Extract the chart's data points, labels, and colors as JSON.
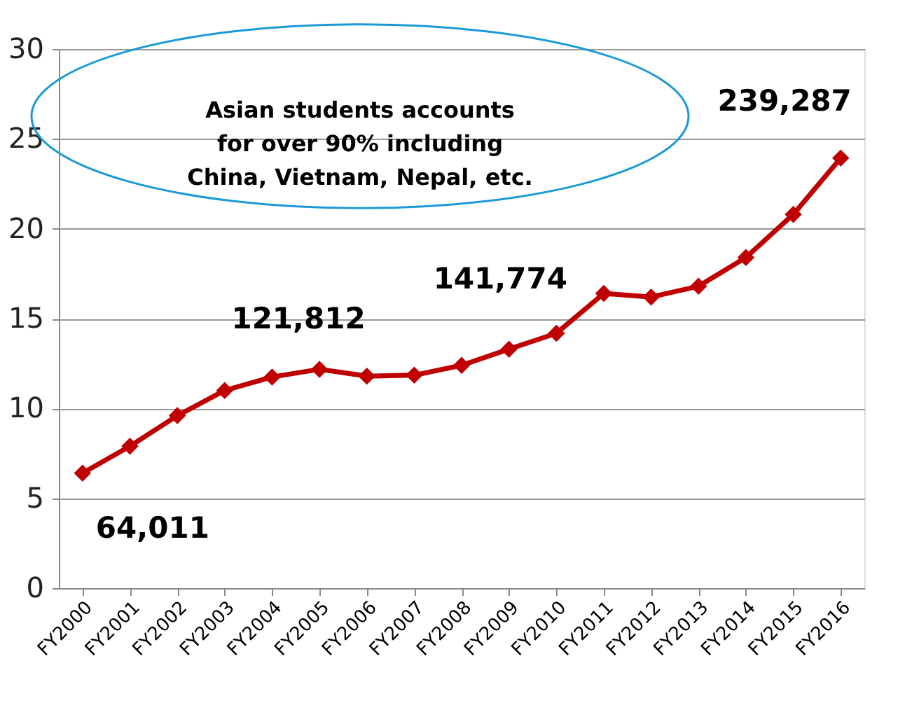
{
  "chart_data": {
    "type": "line",
    "categories": [
      "FY2000",
      "FY2001",
      "FY2002",
      "FY2003",
      "FY2004",
      "FY2005",
      "FY2006",
      "FY2007",
      "FY2008",
      "FY2009",
      "FY2010",
      "FY2011",
      "FY2012",
      "FY2013",
      "FY2014",
      "FY2015",
      "FY2016"
    ],
    "series": [
      {
        "color": "#c00000",
        "values": [
          6.4,
          7.9,
          9.6,
          11.0,
          11.75,
          12.18,
          11.8,
          11.85,
          12.4,
          13.3,
          14.18,
          16.4,
          16.2,
          16.8,
          18.4,
          20.8,
          23.93
        ]
      }
    ],
    "ylim": [
      0,
      30
    ],
    "yticks": [
      0,
      5,
      10,
      15,
      20,
      25,
      30
    ],
    "grid": "y",
    "marker": "diamond",
    "line_style": "solid",
    "annotations": [
      {
        "text": "64,011",
        "x": "FY2000",
        "y": 6.4
      },
      {
        "text": "121,812",
        "x": "FY2005",
        "y": 12.18
      },
      {
        "text": "141,774",
        "x": "FY2010",
        "y": 14.18
      },
      {
        "text": "239,287",
        "x": "FY2016",
        "y": 23.93
      },
      "Asian students accounts\nfor over 90% including\nChina, Vietnam, Nepal, etc."
    ]
  }
}
